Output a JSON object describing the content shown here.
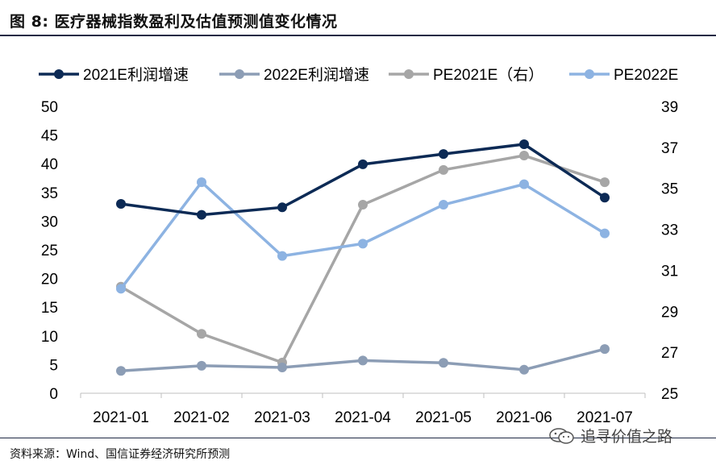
{
  "title": "图  8:  医疗器械指数盈利及估值预测值变化情况",
  "source": "资料来源：Wind、国信证券经济研究所预测",
  "watermark": "追寻价值之路",
  "chart_data": {
    "type": "line",
    "categories": [
      "2021-01",
      "2021-02",
      "2021-03",
      "2021-04",
      "2021-05",
      "2021-06",
      "2021-07"
    ],
    "y_left": {
      "range": [
        0,
        50
      ],
      "ticks": [
        0,
        5,
        10,
        15,
        20,
        25,
        30,
        35,
        40,
        45,
        50
      ]
    },
    "y_right": {
      "range": [
        25,
        39
      ],
      "ticks": [
        25,
        27,
        29,
        31,
        33,
        35,
        37,
        39
      ]
    },
    "grid": false,
    "legend_position": "top",
    "series": [
      {
        "name": "2021E利润增速",
        "axis": "left",
        "color": "#0c2a55",
        "values": [
          33.0,
          31.1,
          32.4,
          39.9,
          41.7,
          43.4,
          34.1
        ]
      },
      {
        "name": "2022E利润增速",
        "axis": "left",
        "color": "#8c9db5",
        "values": [
          3.9,
          4.8,
          4.5,
          5.7,
          5.3,
          4.1,
          7.7
        ]
      },
      {
        "name": "PE2021E（右）",
        "axis": "right",
        "color": "#a6a6a6",
        "values": [
          30.2,
          27.9,
          26.5,
          34.2,
          35.9,
          36.6,
          35.3
        ]
      },
      {
        "name": "PE2022E",
        "axis": "right",
        "color": "#8db3e2",
        "values": [
          30.1,
          35.3,
          31.7,
          32.3,
          34.2,
          35.2,
          32.8
        ]
      }
    ]
  }
}
